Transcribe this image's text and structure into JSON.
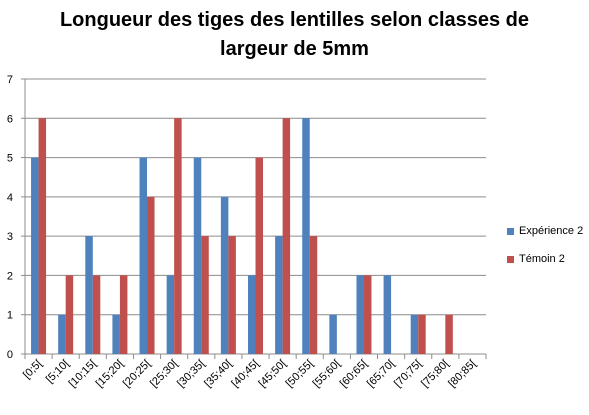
{
  "chart_data": {
    "type": "bar",
    "title": "Longueur des tiges des lentilles selon classes de largeur de 5mm",
    "title_lines": [
      "Longueur des tiges des lentilles selon classes de",
      "largeur de 5mm"
    ],
    "xlabel": "",
    "ylabel": "",
    "ylim": [
      0,
      7
    ],
    "yticks": [
      "0",
      "1",
      "2",
      "3",
      "4",
      "5",
      "6",
      "7"
    ],
    "grid": true,
    "legend_position": "right",
    "categories": [
      "[0;5[",
      "[5;10[",
      "[10;15[",
      "[15;20[",
      "[20;25[",
      "[25;30[",
      "[30;35[",
      "[35;40[",
      "[40;45[",
      "[45;50[",
      "[50;55[",
      "[55;60[",
      "[60;65[",
      "[65;70[",
      "[70;75[",
      "[75;80[",
      "[80;85["
    ],
    "series": [
      {
        "name": "Expérience 2",
        "color": "#4f81bd",
        "values": [
          5,
          1,
          3,
          1,
          5,
          2,
          5,
          4,
          2,
          3,
          6,
          1,
          2,
          2,
          1,
          0,
          0
        ]
      },
      {
        "name": "Témoin 2",
        "color": "#c0504d",
        "values": [
          6,
          2,
          2,
          2,
          4,
          6,
          3,
          3,
          5,
          6,
          3,
          0,
          2,
          0,
          1,
          1,
          0
        ]
      }
    ]
  }
}
